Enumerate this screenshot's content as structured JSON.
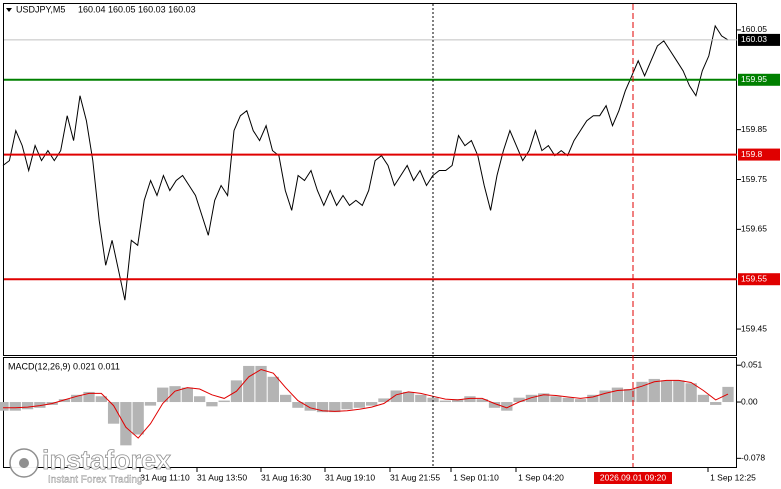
{
  "header": {
    "symbol": "USDJPY,M5",
    "ohlc": "160.04 160.05 160.03 160.03"
  },
  "chart_data": [
    {
      "type": "line",
      "color": "#000000",
      "ylim": [
        159.398,
        160.102
      ],
      "yticks": [
        160.05,
        159.85,
        159.75,
        159.65,
        159.45
      ],
      "current_price": 160.03,
      "levels": [
        {
          "value": 159.95,
          "color": "#008000"
        },
        {
          "value": 159.8,
          "color": "#e00000"
        },
        {
          "value": 159.55,
          "color": "#e00000"
        }
      ],
      "values": [
        159.778,
        159.788,
        159.848,
        159.818,
        159.768,
        159.818,
        159.788,
        159.808,
        159.788,
        159.808,
        159.878,
        159.828,
        159.918,
        159.868,
        159.788,
        159.668,
        159.578,
        159.628,
        159.568,
        159.508,
        159.628,
        159.618,
        159.708,
        159.748,
        159.718,
        159.758,
        159.728,
        159.748,
        159.758,
        159.738,
        159.718,
        159.678,
        159.638,
        159.708,
        159.738,
        159.718,
        159.848,
        159.878,
        159.888,
        159.848,
        159.828,
        159.858,
        159.808,
        159.798,
        159.728,
        159.688,
        159.758,
        159.748,
        159.768,
        159.728,
        159.698,
        159.728,
        159.698,
        159.718,
        159.698,
        159.708,
        159.698,
        159.728,
        159.788,
        159.798,
        159.778,
        159.738,
        159.758,
        159.778,
        159.748,
        159.768,
        159.738,
        159.758,
        159.768,
        159.768,
        159.778,
        159.838,
        159.818,
        159.828,
        159.798,
        159.738,
        159.688,
        159.758,
        159.808,
        159.848,
        159.818,
        159.788,
        159.808,
        159.848,
        159.808,
        159.818,
        159.798,
        159.808,
        159.798,
        159.828,
        159.848,
        159.868,
        159.878,
        159.878,
        159.898,
        159.858,
        159.888,
        159.928,
        159.958,
        159.988,
        159.958,
        159.988,
        160.018,
        160.028,
        160.008,
        159.988,
        159.968,
        159.938,
        159.918,
        159.968,
        159.998,
        160.058,
        160.038,
        160.03
      ]
    },
    {
      "type": "macd",
      "title": "MACD(12,26,9) 0.021 0.011",
      "ylim": [
        -0.09,
        0.061
      ],
      "yticks": [
        0.051,
        {
          "value": 0,
          "label": "0.00"
        },
        -0.078
      ],
      "histogram": {
        "color": "#b4b4b4",
        "values": [
          -0.012,
          -0.012,
          -0.01,
          -0.008,
          -0.004,
          0.004,
          0.01,
          0.014,
          0.008,
          -0.03,
          -0.06,
          -0.045,
          -0.005,
          0.02,
          0.022,
          0.02,
          0.008,
          -0.006,
          0.002,
          0.03,
          0.05,
          0.05,
          0.035,
          0.01,
          -0.008,
          -0.012,
          -0.014,
          -0.014,
          -0.01,
          -0.008,
          -0.005,
          0.005,
          0.016,
          0.014,
          0.01,
          0.006,
          0.002,
          0.004,
          0.008,
          0.004,
          -0.008,
          -0.012,
          0.006,
          0.01,
          0.012,
          0.008,
          0.006,
          0.004,
          0.01,
          0.016,
          0.02,
          0.018,
          0.028,
          0.032,
          0.03,
          0.03,
          0.026,
          0.01,
          -0.004,
          0.021
        ]
      },
      "signal": {
        "color": "#e00000",
        "values": [
          -0.008,
          -0.008,
          -0.007,
          -0.005,
          -0.002,
          0.003,
          0.008,
          0.012,
          0.012,
          -0.005,
          -0.035,
          -0.05,
          -0.03,
          -0.002,
          0.015,
          0.02,
          0.018,
          0.01,
          0.005,
          0.015,
          0.035,
          0.045,
          0.04,
          0.02,
          0.002,
          -0.008,
          -0.012,
          -0.013,
          -0.012,
          -0.01,
          -0.007,
          -0.002,
          0.01,
          0.014,
          0.012,
          0.008,
          0.004,
          0.003,
          0.005,
          0.005,
          -0.002,
          -0.008,
          0,
          0.006,
          0.01,
          0.009,
          0.007,
          0.005,
          0.007,
          0.012,
          0.016,
          0.017,
          0.022,
          0.028,
          0.03,
          0.03,
          0.027,
          0.016,
          0.003,
          0.011
        ]
      }
    }
  ],
  "time_axis": {
    "labels": [
      "31 Aug 11:10",
      "31 Aug 13:50",
      "31 Aug 16:30",
      "31 Aug 19:10",
      "31 Aug 21:55",
      "1 Sep 01:10",
      "1 Sep 04:20",
      "1 Sep 12:25"
    ],
    "cursor": "2026.09.01 09:20"
  },
  "watermark": {
    "name": "instaforex",
    "tagline": "Instant Forex Trading"
  }
}
